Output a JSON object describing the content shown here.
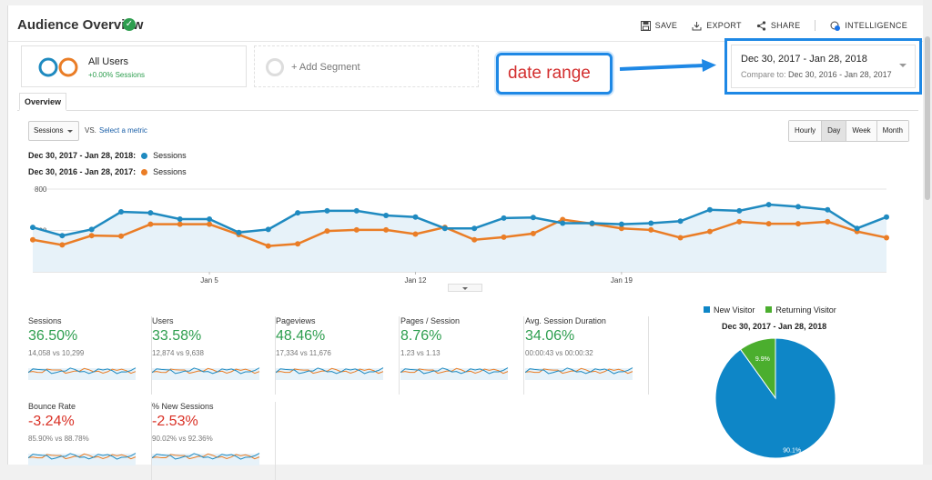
{
  "header": {
    "title": "Audience Overview",
    "save": "SAVE",
    "export": "EXPORT",
    "share": "SHARE",
    "intelligence": "INTELLIGENCE"
  },
  "segments": {
    "all_users_name": "All Users",
    "all_users_sub": "+0.00% Sessions",
    "add_segment": "+ Add Segment"
  },
  "annotation": {
    "text": "date range"
  },
  "date_range": {
    "main": "Dec 30, 2017 - Jan 28, 2018",
    "compare_label": "Compare to:",
    "compare": "Dec 30, 2016 - Jan 28, 2017"
  },
  "tabs": {
    "overview": "Overview"
  },
  "controls": {
    "metric": "Sessions",
    "vs": "VS.",
    "select_metric": "Select a metric",
    "granularity": [
      "Hourly",
      "Day",
      "Week",
      "Month"
    ],
    "active_granularity": "Day"
  },
  "legend": {
    "current_range": "Dec 30, 2017 - Jan 28, 2018:",
    "previous_range": "Dec 30, 2016 - Jan 28, 2017:",
    "series_label": "Sessions"
  },
  "colors": {
    "current": "#1f8ac0",
    "previous": "#ea7d26",
    "new_visitor": "#0e86c7",
    "returning_visitor": "#4bae2e"
  },
  "chart_data": [
    {
      "type": "line",
      "y_ticks": [
        "800",
        "400"
      ],
      "ylim": [
        0,
        800
      ],
      "x_tick_labels": [
        "Jan 5",
        "Jan 12",
        "Jan 19"
      ],
      "x_tick_indices": [
        6,
        13,
        20
      ],
      "grid": true,
      "series": [
        {
          "name": "Dec 30, 2017 - Jan 28, 2018",
          "values": [
            430,
            350,
            410,
            580,
            570,
            510,
            510,
            380,
            410,
            570,
            590,
            590,
            545,
            530,
            420,
            420,
            520,
            525,
            470,
            470,
            460,
            470,
            490,
            600,
            590,
            650,
            630,
            600,
            420,
            530
          ]
        },
        {
          "name": "Dec 30, 2016 - Jan 28, 2017",
          "values": [
            310,
            260,
            350,
            345,
            460,
            460,
            460,
            360,
            250,
            270,
            395,
            405,
            405,
            365,
            430,
            310,
            335,
            370,
            505,
            465,
            420,
            405,
            330,
            390,
            485,
            465,
            465,
            485,
            390,
            330
          ]
        }
      ]
    },
    {
      "type": "pie",
      "title": "Dec 30, 2017 - Jan 28, 2018",
      "categories": [
        "New Visitor",
        "Returning Visitor"
      ],
      "values": [
        90.1,
        9.9
      ],
      "labels": [
        "90.1%",
        "9.9%"
      ],
      "legend": "top"
    }
  ],
  "metrics": [
    {
      "name": "Sessions",
      "change": "36.50%",
      "compare": "14,058 vs 10,299",
      "trend": "up"
    },
    {
      "name": "Users",
      "change": "33.58%",
      "compare": "12,874 vs 9,638",
      "trend": "up"
    },
    {
      "name": "Pageviews",
      "change": "48.46%",
      "compare": "17,334 vs 11,676",
      "trend": "up"
    },
    {
      "name": "Pages / Session",
      "change": "8.76%",
      "compare": "1.23 vs 1.13",
      "trend": "up"
    },
    {
      "name": "Avg. Session Duration",
      "change": "34.06%",
      "compare": "00:00:43 vs 00:00:32",
      "trend": "up"
    },
    {
      "name": "Bounce Rate",
      "change": "-3.24%",
      "compare": "85.90% vs 88.78%",
      "trend": "down"
    },
    {
      "name": "% New Sessions",
      "change": "-2.53%",
      "compare": "90.02% vs 92.36%",
      "trend": "down"
    }
  ]
}
